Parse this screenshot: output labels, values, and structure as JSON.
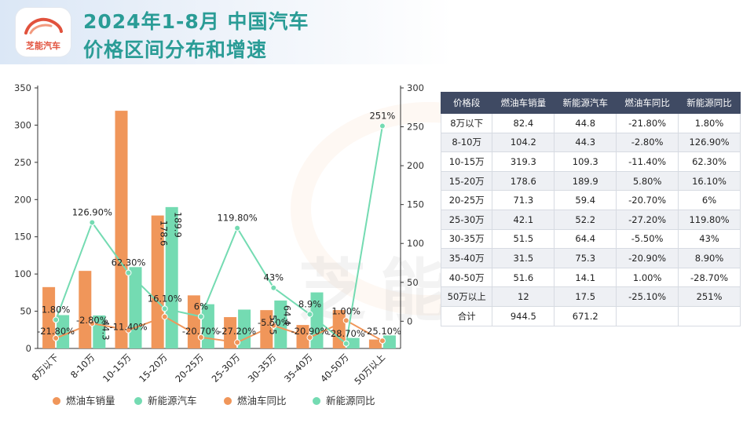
{
  "header": {
    "logo_text": "芝能汽车",
    "title_line1": "2024年1-8月 中国汽车",
    "title_line2": "价格区间分布和增速"
  },
  "watermark": "芝能汽车",
  "colors": {
    "title": "#2a9c96",
    "fuel": "#f0965a",
    "nev": "#74dbb2",
    "table_header": "#3f4a63"
  },
  "chart_data": {
    "type": "bar",
    "categories": [
      "8万以下",
      "8-10万",
      "10-15万",
      "15-20万",
      "20-25万",
      "25-30万",
      "30-35万",
      "35-40万",
      "40-50万",
      "50万以上"
    ],
    "series": [
      {
        "name": "燃油车销量",
        "kind": "bar",
        "axis": "left",
        "values": [
          82.4,
          104.2,
          319.3,
          178.6,
          71.3,
          42.1,
          51.5,
          31.5,
          51.6,
          12
        ]
      },
      {
        "name": "新能源汽车",
        "kind": "bar",
        "axis": "left",
        "values": [
          44.8,
          44.3,
          109.3,
          189.9,
          59.4,
          52.2,
          64.4,
          75.3,
          14.1,
          17.5
        ]
      },
      {
        "name": "燃油车同比",
        "kind": "line",
        "axis": "right",
        "values": [
          -21.8,
          -2.8,
          -11.4,
          5.8,
          -20.7,
          -27.2,
          -5.5,
          -20.9,
          1.0,
          -25.1
        ]
      },
      {
        "name": "新能源同比",
        "kind": "line",
        "axis": "right",
        "values": [
          1.8,
          126.9,
          62.3,
          16.1,
          6,
          119.8,
          43,
          8.9,
          -28.7,
          251
        ]
      }
    ],
    "bar_labels": [
      {
        "series": 0,
        "index": 3,
        "text": "178.6"
      },
      {
        "series": 0,
        "index": 6,
        "text": "51.5"
      },
      {
        "series": 1,
        "index": 1,
        "text": "44.3"
      },
      {
        "series": 1,
        "index": 3,
        "text": "189.9"
      },
      {
        "series": 1,
        "index": 6,
        "text": "64.4"
      }
    ],
    "line_labels": [
      {
        "series": 2,
        "index": 0,
        "text": "-21.80%"
      },
      {
        "series": 2,
        "index": 1,
        "text": "-2.80%"
      },
      {
        "series": 2,
        "index": 2,
        "text": "-11.40%"
      },
      {
        "series": 2,
        "index": 4,
        "text": "-20.70%"
      },
      {
        "series": 2,
        "index": 5,
        "text": "-27.20%"
      },
      {
        "series": 2,
        "index": 6,
        "text": "-5.50%"
      },
      {
        "series": 2,
        "index": 7,
        "text": "-20.90%"
      },
      {
        "series": 2,
        "index": 8,
        "text": "1.00%"
      },
      {
        "series": 2,
        "index": 9,
        "text": "-25.10%"
      },
      {
        "series": 3,
        "index": 0,
        "text": "1.80%"
      },
      {
        "series": 3,
        "index": 1,
        "text": "126.90%"
      },
      {
        "series": 3,
        "index": 2,
        "text": "62.30%"
      },
      {
        "series": 3,
        "index": 3,
        "text": "16.10%"
      },
      {
        "series": 3,
        "index": 4,
        "text": "6%"
      },
      {
        "series": 3,
        "index": 5,
        "text": "119.80%"
      },
      {
        "series": 3,
        "index": 6,
        "text": "43%"
      },
      {
        "series": 3,
        "index": 7,
        "text": "8.9%"
      },
      {
        "series": 3,
        "index": 8,
        "text": "-28.70%"
      },
      {
        "series": 3,
        "index": 9,
        "text": "251%"
      }
    ],
    "y_left": {
      "min": 0,
      "max": 350,
      "ticks": [
        0,
        50,
        100,
        150,
        200,
        250,
        300,
        350
      ]
    },
    "y_right": {
      "min": -35,
      "max": 300,
      "ticks": [
        0,
        50,
        100,
        150,
        200,
        250,
        300
      ]
    },
    "legend": [
      "燃油车销量",
      "新能源汽车",
      "燃油车同比",
      "新能源同比"
    ],
    "legend_position": "bottom"
  },
  "table": {
    "headers": [
      "价格段",
      "燃油车销量",
      "新能源汽车",
      "燃油车同比",
      "新能源同比"
    ],
    "rows": [
      [
        "8万以下",
        "82.4",
        "44.8",
        "-21.80%",
        "1.80%"
      ],
      [
        "8-10万",
        "104.2",
        "44.3",
        "-2.80%",
        "126.90%"
      ],
      [
        "10-15万",
        "319.3",
        "109.3",
        "-11.40%",
        "62.30%"
      ],
      [
        "15-20万",
        "178.6",
        "189.9",
        "5.80%",
        "16.10%"
      ],
      [
        "20-25万",
        "71.3",
        "59.4",
        "-20.70%",
        "6%"
      ],
      [
        "25-30万",
        "42.1",
        "52.2",
        "-27.20%",
        "119.80%"
      ],
      [
        "30-35万",
        "51.5",
        "64.4",
        "-5.50%",
        "43%"
      ],
      [
        "35-40万",
        "31.5",
        "75.3",
        "-20.90%",
        "8.90%"
      ],
      [
        "40-50万",
        "51.6",
        "14.1",
        "1.00%",
        "-28.70%"
      ],
      [
        "50万以上",
        "12",
        "17.5",
        "-25.10%",
        "251%"
      ],
      [
        "合计",
        "944.5",
        "671.2",
        "",
        ""
      ]
    ]
  }
}
